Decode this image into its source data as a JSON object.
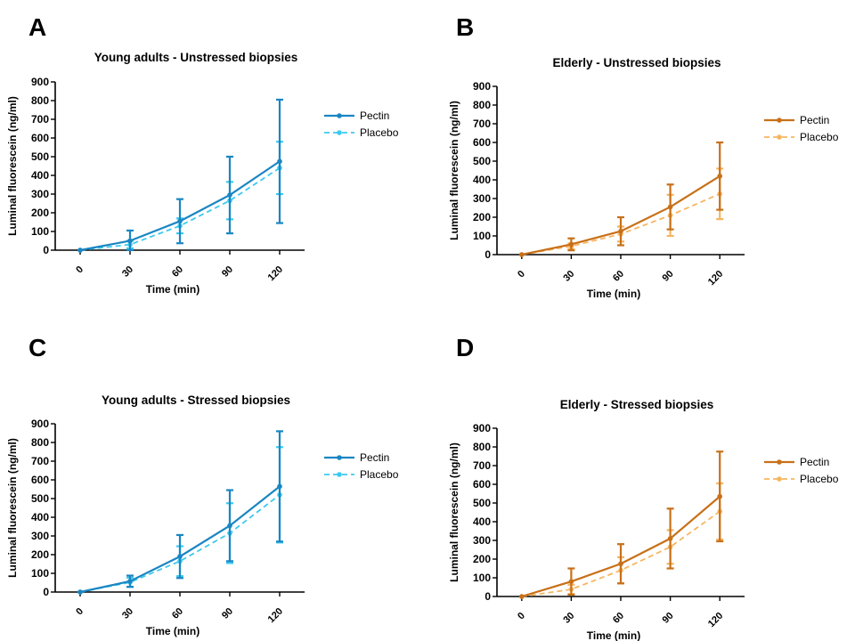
{
  "colors": {
    "pectin_young": "#1a86c2",
    "placebo_young": "#3ccaf0",
    "pectin_elderly": "#c87019",
    "placebo_elderly": "#f6b560"
  },
  "chart_data": [
    {
      "panel": "A",
      "type": "line",
      "title": "Young adults - Unstressed biopsies",
      "xlabel": "Time (min)",
      "ylabel": "Luminal fluorescein (ng/ml)",
      "x": [
        0,
        30,
        60,
        90,
        120
      ],
      "xticks": [
        "0",
        "30",
        "60",
        "90",
        "120"
      ],
      "ylim": [
        0,
        900
      ],
      "yticks": [
        0,
        100,
        200,
        300,
        400,
        500,
        600,
        700,
        800,
        900
      ],
      "legend_position": "right",
      "series": [
        {
          "name": "Pectin",
          "style": "solid",
          "color_key": "pectin_young",
          "values": [
            0,
            50,
            155,
            295,
            475
          ],
          "err": [
            0,
            55,
            118,
            205,
            330
          ]
        },
        {
          "name": "Placebo",
          "style": "dashed",
          "color_key": "placebo_young",
          "values": [
            0,
            30,
            130,
            265,
            440
          ],
          "err": [
            0,
            20,
            40,
            100,
            140
          ]
        }
      ]
    },
    {
      "panel": "B",
      "type": "line",
      "title": "Elderly - Unstressed biopsies",
      "xlabel": "Time (min)",
      "ylabel": "Luminal fluorescein (ng/ml)",
      "x": [
        0,
        30,
        60,
        90,
        120
      ],
      "xticks": [
        "0",
        "30",
        "60",
        "90",
        "120"
      ],
      "ylim": [
        0,
        900
      ],
      "yticks": [
        0,
        100,
        200,
        300,
        400,
        500,
        600,
        700,
        800,
        900
      ],
      "legend_position": "right",
      "series": [
        {
          "name": "Pectin",
          "style": "solid",
          "color_key": "pectin_elderly",
          "values": [
            0,
            55,
            125,
            255,
            420
          ],
          "err": [
            0,
            32,
            75,
            120,
            180
          ]
        },
        {
          "name": "Placebo",
          "style": "dashed",
          "color_key": "placebo_elderly",
          "values": [
            0,
            45,
            110,
            210,
            325
          ],
          "err": [
            0,
            15,
            40,
            110,
            135
          ]
        }
      ]
    },
    {
      "panel": "C",
      "type": "line",
      "title": "Young adults - Stressed biopsies",
      "xlabel": "Time (min)",
      "ylabel": "Luminal fluorescein (ng/ml)",
      "x": [
        0,
        30,
        60,
        90,
        120
      ],
      "xticks": [
        "0",
        "30",
        "60",
        "90",
        "120"
      ],
      "ylim": [
        0,
        900
      ],
      "yticks": [
        0,
        100,
        200,
        300,
        400,
        500,
        600,
        700,
        800,
        900
      ],
      "legend_position": "right",
      "series": [
        {
          "name": "Pectin",
          "style": "solid",
          "color_key": "pectin_young",
          "values": [
            0,
            58,
            190,
            355,
            565
          ],
          "err": [
            0,
            30,
            115,
            190,
            295
          ]
        },
        {
          "name": "Placebo",
          "style": "dashed",
          "color_key": "placebo_young",
          "values": [
            0,
            52,
            165,
            315,
            520
          ],
          "err": [
            0,
            25,
            80,
            160,
            255
          ]
        }
      ]
    },
    {
      "panel": "D",
      "type": "line",
      "title": "Elderly - Stressed biopsies",
      "xlabel": "Time (min)",
      "ylabel": "Luminal fluorescein (ng/ml)",
      "x": [
        0,
        30,
        60,
        90,
        120
      ],
      "xticks": [
        "0",
        "30",
        "60",
        "90",
        "120"
      ],
      "ylim": [
        0,
        900
      ],
      "yticks": [
        0,
        100,
        200,
        300,
        400,
        500,
        600,
        700,
        800,
        900
      ],
      "legend_position": "right",
      "series": [
        {
          "name": "Pectin",
          "style": "solid",
          "color_key": "pectin_elderly",
          "values": [
            0,
            80,
            175,
            310,
            535
          ],
          "err": [
            0,
            70,
            105,
            160,
            240
          ]
        },
        {
          "name": "Placebo",
          "style": "dashed",
          "color_key": "placebo_elderly",
          "values": [
            0,
            38,
            140,
            265,
            455
          ],
          "err": [
            0,
            25,
            70,
            90,
            150
          ]
        }
      ]
    }
  ]
}
